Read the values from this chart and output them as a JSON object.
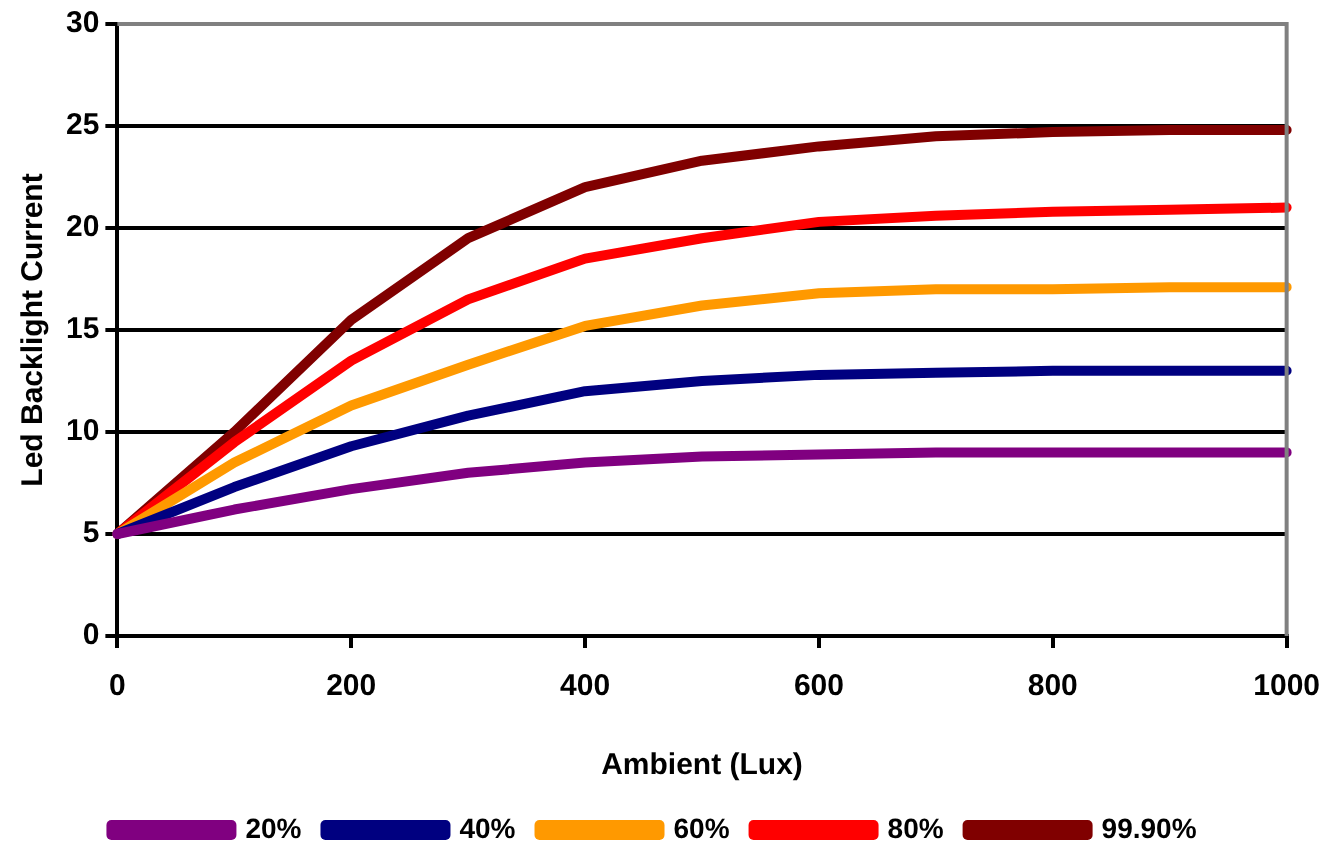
{
  "chart_data": {
    "type": "line",
    "xlabel": "Ambient (Lux)",
    "ylabel": "Led Backlight Current",
    "x": [
      0,
      100,
      200,
      300,
      400,
      500,
      600,
      700,
      800,
      900,
      1000
    ],
    "series": [
      {
        "name": "20%",
        "color": "#800080",
        "values": [
          5,
          6.2,
          7.2,
          8,
          8.5,
          8.8,
          8.9,
          9,
          9,
          9,
          9
        ]
      },
      {
        "name": "40%",
        "color": "#000080",
        "values": [
          5,
          7.3,
          9.3,
          10.8,
          12,
          12.5,
          12.8,
          12.9,
          13,
          13,
          13
        ]
      },
      {
        "name": "60%",
        "color": "#ff9900",
        "values": [
          5,
          8.5,
          11.3,
          13.3,
          15.2,
          16.2,
          16.8,
          17,
          17,
          17.1,
          17.1
        ]
      },
      {
        "name": "80%",
        "color": "#ff0000",
        "values": [
          5,
          9.5,
          13.5,
          16.5,
          18.5,
          19.5,
          20.3,
          20.6,
          20.8,
          20.9,
          21
        ]
      },
      {
        "name": "99.90%",
        "color": "#800000",
        "values": [
          5,
          10,
          15.5,
          19.5,
          22,
          23.3,
          24,
          24.5,
          24.7,
          24.8,
          24.8
        ]
      }
    ],
    "xlim": [
      0,
      1000
    ],
    "xticks": [
      0,
      200,
      400,
      600,
      800,
      1000
    ],
    "ylim": [
      0,
      30
    ],
    "yticks": [
      0,
      5,
      10,
      15,
      20,
      25,
      30
    ],
    "grid": "y",
    "legend": "bottom",
    "marker": "none",
    "line_style": "solid"
  }
}
